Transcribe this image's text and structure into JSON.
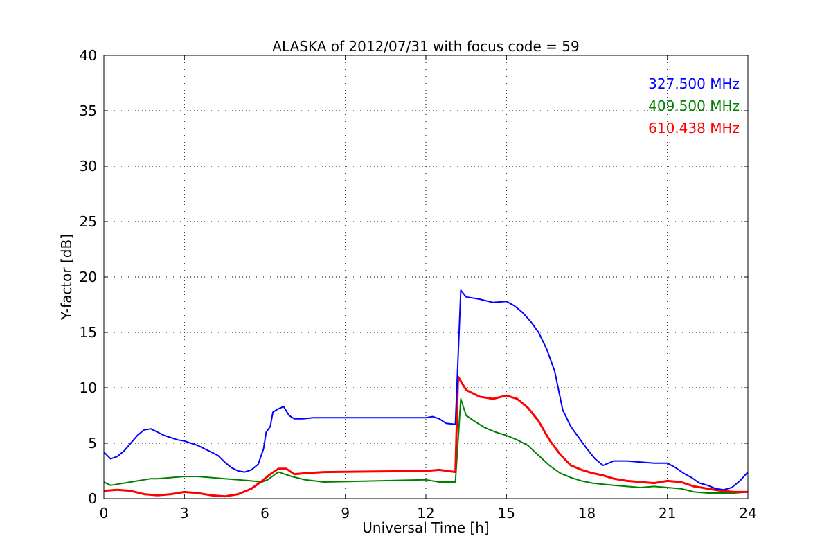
{
  "chart_data": {
    "type": "line",
    "title": "ALASKA of 2012/07/31 with focus code = 59",
    "xlabel": "Universal Time [h]",
    "ylabel": "Y-factor [dB]",
    "xlim": [
      0,
      24
    ],
    "ylim": [
      0,
      40
    ],
    "xticks": [
      "0",
      "3",
      "6",
      "9",
      "12",
      "15",
      "18",
      "21",
      "24"
    ],
    "yticks": [
      "0",
      "5",
      "10",
      "15",
      "20",
      "25",
      "30",
      "35",
      "40"
    ],
    "grid": true,
    "legend_position": "top-right",
    "series": [
      {
        "name": "327.500 MHz",
        "color": "#0000ff",
        "x": [
          0,
          0.25,
          0.5,
          0.75,
          1,
          1.25,
          1.5,
          1.75,
          2,
          2.25,
          2.5,
          2.75,
          3,
          3.25,
          3.5,
          3.75,
          4,
          4.25,
          4.5,
          4.75,
          5,
          5.25,
          5.5,
          5.75,
          5.95,
          6.05,
          6.2,
          6.3,
          6.5,
          6.7,
          6.9,
          7.1,
          7.4,
          7.8,
          8.2,
          12,
          12.25,
          12.5,
          12.75,
          13.1,
          13.3,
          13.5,
          14,
          14.5,
          15,
          15.3,
          15.6,
          15.9,
          16.2,
          16.5,
          16.8,
          17.1,
          17.4,
          17.7,
          18,
          18.3,
          18.6,
          19,
          19.5,
          20,
          20.5,
          21,
          21.3,
          21.6,
          21.9,
          22.2,
          22.5,
          22.8,
          23.1,
          23.4,
          23.7,
          24
        ],
        "y": [
          4.2,
          3.6,
          3.8,
          4.3,
          5.0,
          5.7,
          6.2,
          6.3,
          6.0,
          5.7,
          5.5,
          5.3,
          5.2,
          5.0,
          4.8,
          4.5,
          4.2,
          3.9,
          3.3,
          2.8,
          2.5,
          2.4,
          2.6,
          3.1,
          4.5,
          6.0,
          6.5,
          7.8,
          8.1,
          8.3,
          7.5,
          7.2,
          7.2,
          7.3,
          7.3,
          7.3,
          7.4,
          7.2,
          6.8,
          6.7,
          18.8,
          18.2,
          18.0,
          17.7,
          17.8,
          17.4,
          16.8,
          16.0,
          15.0,
          13.5,
          11.5,
          8.0,
          6.5,
          5.5,
          4.5,
          3.6,
          3.0,
          3.4,
          3.4,
          3.3,
          3.2,
          3.2,
          2.8,
          2.3,
          1.9,
          1.4,
          1.2,
          0.9,
          0.8,
          1.0,
          1.6,
          2.4
        ]
      },
      {
        "name": "409.500 MHz",
        "color": "#008000",
        "x": [
          0,
          0.25,
          0.5,
          0.75,
          1,
          1.25,
          1.5,
          1.75,
          2,
          2.5,
          3,
          3.5,
          4,
          4.5,
          5,
          5.5,
          5.9,
          6.1,
          6.5,
          7,
          7.5,
          8.2,
          12,
          12.5,
          13.1,
          13.3,
          13.5,
          13.8,
          14.2,
          14.6,
          15,
          15.4,
          15.8,
          16.2,
          16.6,
          17,
          17.4,
          17.8,
          18.2,
          18.6,
          19,
          19.5,
          20,
          20.5,
          21,
          21.5,
          22,
          22.5,
          23,
          23.5,
          24
        ],
        "y": [
          1.5,
          1.2,
          1.3,
          1.4,
          1.5,
          1.6,
          1.7,
          1.8,
          1.8,
          1.9,
          2.0,
          2.0,
          1.9,
          1.8,
          1.7,
          1.6,
          1.5,
          1.7,
          2.4,
          2.0,
          1.7,
          1.5,
          1.7,
          1.5,
          1.5,
          9.0,
          7.5,
          7.0,
          6.4,
          6.0,
          5.7,
          5.3,
          4.8,
          3.9,
          3.0,
          2.3,
          1.9,
          1.6,
          1.4,
          1.3,
          1.2,
          1.1,
          1.0,
          1.1,
          1.0,
          0.9,
          0.6,
          0.5,
          0.5,
          0.5,
          0.6
        ]
      },
      {
        "name": "610.438 MHz",
        "color": "#ff0000",
        "x": [
          0,
          0.5,
          1,
          1.5,
          2,
          2.5,
          3,
          3.5,
          4,
          4.5,
          5,
          5.5,
          5.9,
          6.2,
          6.5,
          6.8,
          7.1,
          7.5,
          8.2,
          12,
          12.5,
          13.1,
          13.2,
          13.5,
          14,
          14.5,
          15,
          15.4,
          15.8,
          16.2,
          16.6,
          17,
          17.4,
          17.8,
          18.2,
          18.6,
          19,
          19.5,
          20,
          20.5,
          21,
          21.5,
          22,
          22.5,
          23,
          23.5,
          24
        ],
        "y": [
          0.7,
          0.8,
          0.7,
          0.4,
          0.3,
          0.4,
          0.6,
          0.5,
          0.3,
          0.2,
          0.4,
          0.9,
          1.6,
          2.2,
          2.7,
          2.7,
          2.2,
          2.3,
          2.4,
          2.5,
          2.6,
          2.4,
          11.0,
          9.8,
          9.2,
          9.0,
          9.3,
          9.0,
          8.2,
          7.0,
          5.3,
          4.0,
          3.0,
          2.6,
          2.3,
          2.1,
          1.8,
          1.6,
          1.5,
          1.4,
          1.6,
          1.5,
          1.1,
          0.9,
          0.7,
          0.6,
          0.6
        ]
      }
    ]
  }
}
